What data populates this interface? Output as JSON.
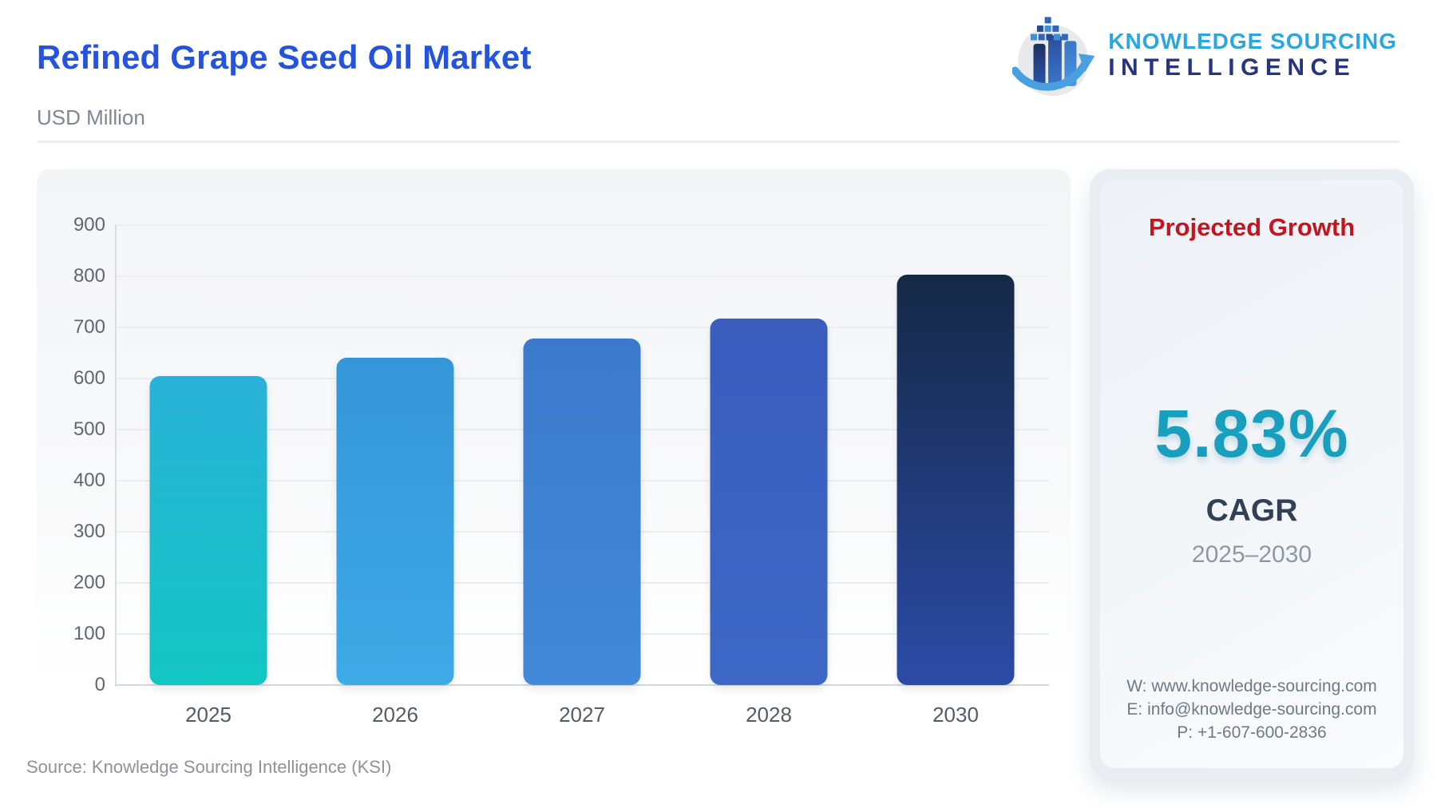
{
  "header": {
    "title": "Refined Grape Seed Oil Market",
    "subtitle": "USD Million"
  },
  "logo": {
    "line1": "KNOWLEDGE SOURCING",
    "line2": "INTELLIGENCE",
    "line1_color": "#2ba7e0",
    "line2_color": "#26357f"
  },
  "chart_data": {
    "type": "bar",
    "title": "Refined Grape Seed Oil Market",
    "ylabel": "USD Million",
    "xlabel": "",
    "categories": [
      "2025",
      "2026",
      "2027",
      "2028",
      "2030"
    ],
    "values": [
      605,
      640,
      678,
      717,
      803
    ],
    "ylim": [
      0,
      900
    ],
    "ytick_step": 100,
    "grid": "horizontal",
    "legend": "none",
    "bar_gradients": [
      [
        "#2ab2d9",
        "#12c6c2"
      ],
      [
        "#3595d9",
        "#3eaae6"
      ],
      [
        "#3c79cb",
        "#4289d7"
      ],
      [
        "#3a5dbe",
        "#3d68c6"
      ],
      [
        "#152845",
        "#2c4ba6"
      ]
    ]
  },
  "panel": {
    "heading": "Projected Growth",
    "heading_color": "#c1161f",
    "value": "5.83%",
    "value_color": "#189fbe",
    "label": "CAGR",
    "period": "2025–2030",
    "contacts": {
      "website": "W: www.knowledge-sourcing.com",
      "email": "E: info@knowledge-sourcing.com",
      "phone": "P: +1-607-600-2836"
    }
  },
  "source": "Source: Knowledge Sourcing Intelligence (KSI)",
  "colors": {
    "title_blue": "#2453dd",
    "subtitle_gray": "#7d8892",
    "tick_gray": "#5d6771",
    "source_gray": "#8b939b"
  }
}
